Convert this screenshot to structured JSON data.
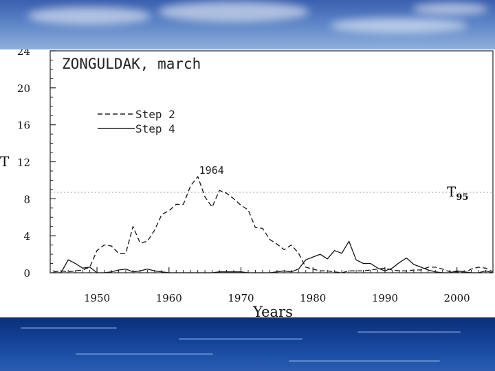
{
  "chart_data": {
    "type": "line",
    "title": "ZONGULDAK, march",
    "xlabel": "Years",
    "ylabel": "T",
    "xlim": [
      1943.5,
      2005
    ],
    "ylim": [
      0,
      24
    ],
    "xticks": [
      1950,
      1960,
      1970,
      1980,
      1990,
      2000
    ],
    "yticks": [
      0,
      4,
      8,
      12,
      16,
      20,
      24
    ],
    "legend_position": "upper-left",
    "threshold": {
      "label": "T",
      "subscript": "95",
      "value": 8.7
    },
    "annotations": [
      {
        "text": "1964",
        "x": 1964,
        "y": 10.4
      }
    ],
    "series": [
      {
        "name": "Step 2",
        "style": "dashed",
        "x": [
          1944,
          1945,
          1946,
          1947,
          1948,
          1949,
          1950,
          1951,
          1952,
          1953,
          1954,
          1955,
          1956,
          1957,
          1958,
          1959,
          1960,
          1961,
          1962,
          1963,
          1964,
          1965,
          1966,
          1967,
          1968,
          1969,
          1970,
          1971,
          1972,
          1973,
          1974,
          1975,
          1976,
          1977,
          1978,
          1979,
          1980,
          1981,
          1982,
          1983,
          1984,
          1985,
          1986,
          1987,
          1988,
          1989,
          1990,
          1991,
          1992,
          1993,
          1994,
          1995,
          1996,
          1997,
          1998,
          1999,
          2000,
          2001,
          2002,
          2003,
          2004,
          2005
        ],
        "values": [
          0.1,
          0.2,
          0.1,
          0.2,
          0.3,
          0.6,
          2.4,
          3.0,
          2.9,
          2.1,
          2.1,
          5.0,
          3.2,
          3.4,
          4.6,
          6.3,
          6.7,
          7.4,
          7.4,
          9.4,
          10.4,
          8.2,
          7.1,
          8.9,
          8.6,
          8.0,
          7.3,
          6.8,
          4.9,
          4.8,
          3.6,
          3.1,
          2.5,
          3.0,
          2.1,
          0.6,
          0.4,
          0.2,
          0.2,
          0.1,
          0.0,
          0.2,
          0.2,
          0.2,
          0.3,
          0.4,
          0.5,
          0.3,
          0.2,
          0.2,
          0.3,
          0.3,
          0.6,
          0.6,
          0.4,
          0.1,
          0.1,
          0.0,
          0.4,
          0.6,
          0.5,
          0.1
        ]
      },
      {
        "name": "Step 4",
        "style": "solid",
        "x": [
          1944,
          1945,
          1946,
          1947,
          1948,
          1949,
          1950,
          1951,
          1952,
          1953,
          1954,
          1955,
          1956,
          1957,
          1958,
          1959,
          1960,
          1961,
          1962,
          1963,
          1964,
          1965,
          1966,
          1967,
          1968,
          1969,
          1970,
          1971,
          1972,
          1973,
          1974,
          1975,
          1976,
          1977,
          1978,
          1979,
          1980,
          1981,
          1982,
          1983,
          1984,
          1985,
          1986,
          1987,
          1988,
          1989,
          1990,
          1991,
          1992,
          1993,
          1994,
          1995,
          1996,
          1997,
          1998,
          1999,
          2000,
          2001,
          2002,
          2003,
          2004,
          2005
        ],
        "values": [
          0.0,
          0.0,
          1.4,
          1.0,
          0.5,
          0.6,
          0.0,
          0.0,
          0.1,
          0.3,
          0.4,
          0.1,
          0.2,
          0.4,
          0.2,
          0.1,
          0.0,
          0.0,
          0.0,
          0.0,
          0.0,
          0.0,
          0.0,
          0.1,
          0.1,
          0.1,
          0.1,
          0.0,
          0.0,
          0.0,
          0.0,
          0.1,
          0.2,
          0.1,
          0.4,
          1.4,
          1.7,
          2.0,
          1.5,
          2.4,
          2.1,
          3.4,
          1.4,
          1.0,
          1.0,
          0.5,
          0.2,
          0.5,
          1.1,
          1.6,
          0.9,
          0.6,
          0.3,
          0.1,
          0.0,
          0.0,
          0.2,
          0.1,
          0.0,
          0.0,
          0.2,
          0.0
        ]
      }
    ]
  }
}
